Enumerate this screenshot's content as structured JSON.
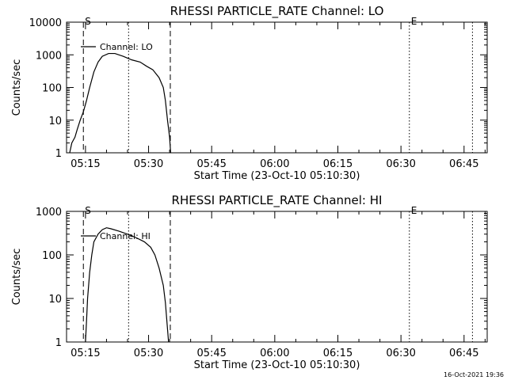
{
  "footer": {
    "timestamp": "16-Oct-2021 19:36"
  },
  "chart_data": [
    {
      "type": "line",
      "title": "RHESSI PARTICLE_RATE Channel: LO",
      "xlabel": "Start Time (23-Oct-10 05:10:30)",
      "ylabel": "Counts/sec",
      "yscale": "log",
      "xlim": [
        "05:10:30",
        "06:50:30"
      ],
      "ylim": [
        1,
        10000
      ],
      "xticks": [
        "05:15",
        "05:30",
        "05:45",
        "06:00",
        "06:15",
        "06:30",
        "06:45"
      ],
      "yticks": [
        {
          "value": 1,
          "label": "1"
        },
        {
          "value": 10,
          "label": "10"
        },
        {
          "value": 100,
          "label": "100"
        },
        {
          "value": 1000,
          "label": "1000"
        },
        {
          "value": 10000,
          "label": "10000"
        }
      ],
      "legend": "upper-left",
      "grid": false,
      "vlines": [
        {
          "x": "05:14:30",
          "style": "dashed",
          "label": "S"
        },
        {
          "x": "05:35:10",
          "style": "dashed",
          "label": ""
        },
        {
          "x": "05:25:15",
          "style": "dotted",
          "label": ""
        },
        {
          "x": "06:32:00",
          "style": "dotted",
          "label": "E"
        },
        {
          "x": "06:47:00",
          "style": "dotted",
          "label": ""
        }
      ],
      "series": [
        {
          "name": "Channel: LO",
          "points": [
            [
              "05:11:15",
              1
            ],
            [
              "05:11:45",
              2
            ],
            [
              "05:12:30",
              3
            ],
            [
              "05:13:00",
              5
            ],
            [
              "05:13:45",
              10
            ],
            [
              "05:14:30",
              18
            ],
            [
              "05:15:15",
              40
            ],
            [
              "05:16:00",
              100
            ],
            [
              "05:17:00",
              300
            ],
            [
              "05:18:00",
              600
            ],
            [
              "05:19:00",
              900
            ],
            [
              "05:20:30",
              1100
            ],
            [
              "05:22:00",
              1100
            ],
            [
              "05:24:00",
              900
            ],
            [
              "05:26:00",
              700
            ],
            [
              "05:28:00",
              600
            ],
            [
              "05:29:30",
              450
            ],
            [
              "05:31:00",
              350
            ],
            [
              "05:32:30",
              200
            ],
            [
              "05:33:30",
              100
            ],
            [
              "05:34:00",
              40
            ],
            [
              "05:34:30",
              10
            ],
            [
              "05:35:00",
              3
            ],
            [
              "05:35:15",
              1
            ]
          ]
        }
      ]
    },
    {
      "type": "line",
      "title": "RHESSI PARTICLE_RATE Channel: HI",
      "xlabel": "Start Time (23-Oct-10 05:10:30)",
      "ylabel": "Counts/sec",
      "yscale": "log",
      "xlim": [
        "05:10:30",
        "06:50:30"
      ],
      "ylim": [
        1,
        1000
      ],
      "xticks": [
        "05:15",
        "05:30",
        "05:45",
        "06:00",
        "06:15",
        "06:30",
        "06:45"
      ],
      "yticks": [
        {
          "value": 1,
          "label": "1"
        },
        {
          "value": 10,
          "label": "10"
        },
        {
          "value": 100,
          "label": "100"
        },
        {
          "value": 1000,
          "label": "1000"
        }
      ],
      "legend": "upper-left",
      "grid": false,
      "vlines": [
        {
          "x": "05:14:30",
          "style": "dashed",
          "label": "S"
        },
        {
          "x": "05:35:10",
          "style": "dashed",
          "label": ""
        },
        {
          "x": "05:25:15",
          "style": "dotted",
          "label": ""
        },
        {
          "x": "06:32:00",
          "style": "dotted",
          "label": "E"
        },
        {
          "x": "06:47:00",
          "style": "dotted",
          "label": ""
        }
      ],
      "series": [
        {
          "name": "Channel: HI",
          "points": [
            [
              "05:15:00",
              1
            ],
            [
              "05:15:15",
              3
            ],
            [
              "05:15:30",
              10
            ],
            [
              "05:16:00",
              40
            ],
            [
              "05:16:30",
              100
            ],
            [
              "05:17:00",
              200
            ],
            [
              "05:18:00",
              300
            ],
            [
              "05:19:00",
              380
            ],
            [
              "05:20:00",
              420
            ],
            [
              "05:21:00",
              400
            ],
            [
              "05:23:00",
              350
            ],
            [
              "05:25:00",
              300
            ],
            [
              "05:27:00",
              250
            ],
            [
              "05:29:00",
              200
            ],
            [
              "05:30:30",
              150
            ],
            [
              "05:31:30",
              100
            ],
            [
              "05:32:30",
              50
            ],
            [
              "05:33:30",
              20
            ],
            [
              "05:34:00",
              8
            ],
            [
              "05:34:30",
              2
            ],
            [
              "05:34:45",
              1
            ]
          ]
        }
      ]
    }
  ]
}
